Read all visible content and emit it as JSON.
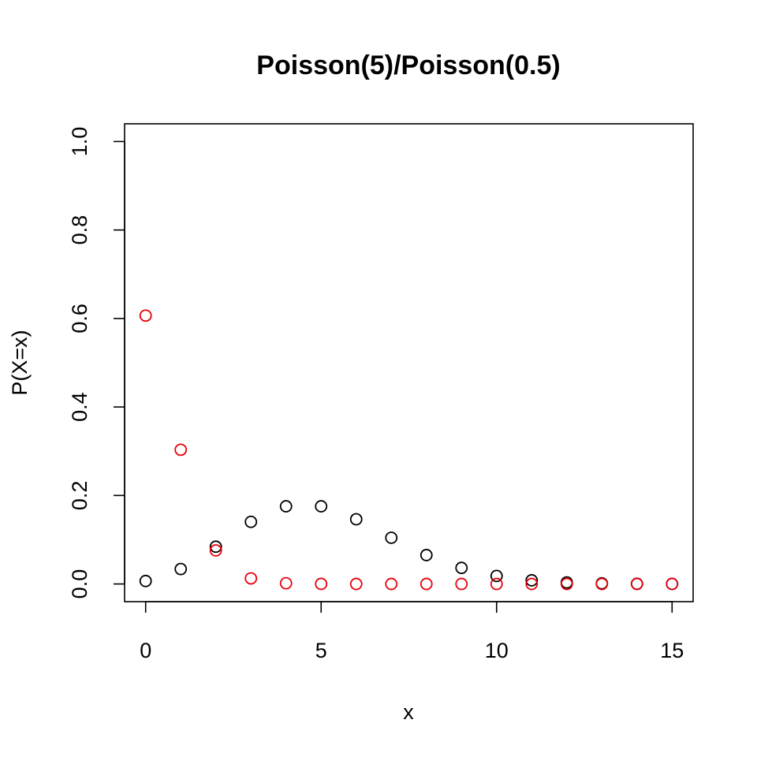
{
  "chart_data": {
    "type": "scatter",
    "title": "Poisson(5)/Poisson(0.5)",
    "xlabel": "x",
    "ylabel": "P(X=x)",
    "xlim": [
      -0.6,
      15.6
    ],
    "ylim": [
      -0.04,
      1.04
    ],
    "x_ticks": [
      0,
      5,
      10,
      15
    ],
    "y_ticks": [
      0.0,
      0.2,
      0.4,
      0.6,
      0.8,
      1.0
    ],
    "x_tick_labels": [
      "0",
      "5",
      "10",
      "15"
    ],
    "y_tick_labels": [
      "0.0",
      "0.2",
      "0.4",
      "0.6",
      "0.8",
      "1.0"
    ],
    "grid": false,
    "legend": "none",
    "series": [
      {
        "color": "#000000",
        "x": [
          0,
          1,
          2,
          3,
          4,
          5,
          6,
          7,
          8,
          9,
          10,
          11,
          12,
          13,
          14,
          15
        ],
        "y": [
          0.0067,
          0.0337,
          0.0842,
          0.1404,
          0.1755,
          0.1755,
          0.1462,
          0.1044,
          0.0653,
          0.0363,
          0.0181,
          0.0082,
          0.0034,
          0.0013,
          0.0005,
          0.0002
        ]
      },
      {
        "color": "#e8000b",
        "x": [
          0,
          1,
          2,
          3,
          4,
          5,
          6,
          7,
          8,
          9,
          10,
          11,
          12,
          13,
          14,
          15
        ],
        "y": [
          0.6065,
          0.3033,
          0.0758,
          0.0126,
          0.0016,
          0.0002,
          0.0,
          0.0,
          0.0,
          0.0,
          0.0,
          0.0,
          0.0,
          0.0,
          0.0,
          0.0
        ]
      }
    ]
  }
}
